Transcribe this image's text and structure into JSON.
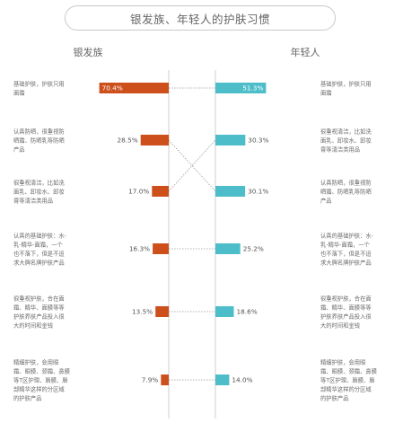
{
  "title": "银发族、年轻人的护肤习惯",
  "colors": {
    "silver": "#cc4f1c",
    "young": "#4dbdc9",
    "axis": "#cfcfcf",
    "connector": "#9a9a9a"
  },
  "chart_data": {
    "type": "bar",
    "layout": "butterfly",
    "title": "银发族、年轻人的护肤习惯",
    "series": [
      {
        "name": "银发族",
        "categories": [
          [
            "基础护肤，护肤只用",
            "面霜"
          ],
          [
            "认真防晒，很重视防",
            "晒霜、防晒乳等防晒",
            "产品"
          ],
          [
            "很重视清洁，比如洗",
            "面乳、卸妆水、卸妆",
            "膏等清洁类用品"
          ],
          [
            "认真的基础护肤：水-",
            "乳-精华-面霜，一个",
            "也不落下，但是不追",
            "求大牌名牌护肤产品"
          ],
          [
            "很重视护肤，合在面",
            "霜、精华、面膜等等",
            "护肤养肤产品投入很",
            "大的时间和金钱"
          ],
          [
            "精细护肤，会用眼",
            "霜、眼膜、颈霜、鼻膜",
            "等T区护理、唇膜、唇",
            "部精华这样的分区域",
            "的护肤产品"
          ]
        ],
        "values": [
          70.4,
          28.5,
          17.0,
          16.3,
          13.5,
          7.9
        ]
      },
      {
        "name": "年轻人",
        "categories": [
          [
            "基础护肤，护肤只用",
            "面霜"
          ],
          [
            "很重视清洁，比如洗",
            "面乳、卸妆水、卸妆",
            "膏等清洁类用品"
          ],
          [
            "认真防晒，很重视防",
            "晒霜、防晒乳等防晒",
            "产品"
          ],
          [
            "认真的基础护肤：水-",
            "乳-精华-面霜，一个",
            "也不落下，但是不追",
            "求大牌名牌护肤产品"
          ],
          [
            "很重视护肤，合在面",
            "霜、精华、面膜等等",
            "护肤养肤产品投入很",
            "大的时间和金钱"
          ],
          [
            "精细护肤，会用眼",
            "霜、眼膜、颈霜、鼻膜",
            "等T区护理、唇膜、唇",
            "部精华这样的分区域",
            "的护肤产品"
          ]
        ],
        "values": [
          51.3,
          30.3,
          30.1,
          25.2,
          18.6,
          14.0
        ]
      }
    ],
    "value_labels": {
      "silver": [
        "70.4%",
        "28.5%",
        "17.0%",
        "16.3%",
        "13.5%",
        "7.9%"
      ],
      "young": [
        "51.3%",
        "30.3%",
        "30.1%",
        "25.2%",
        "18.6%",
        "14.0%"
      ]
    },
    "cross_links": [
      [
        1,
        2
      ],
      [
        2,
        1
      ]
    ],
    "xlim": [
      0,
      100
    ],
    "grid": false,
    "legend": "none"
  }
}
